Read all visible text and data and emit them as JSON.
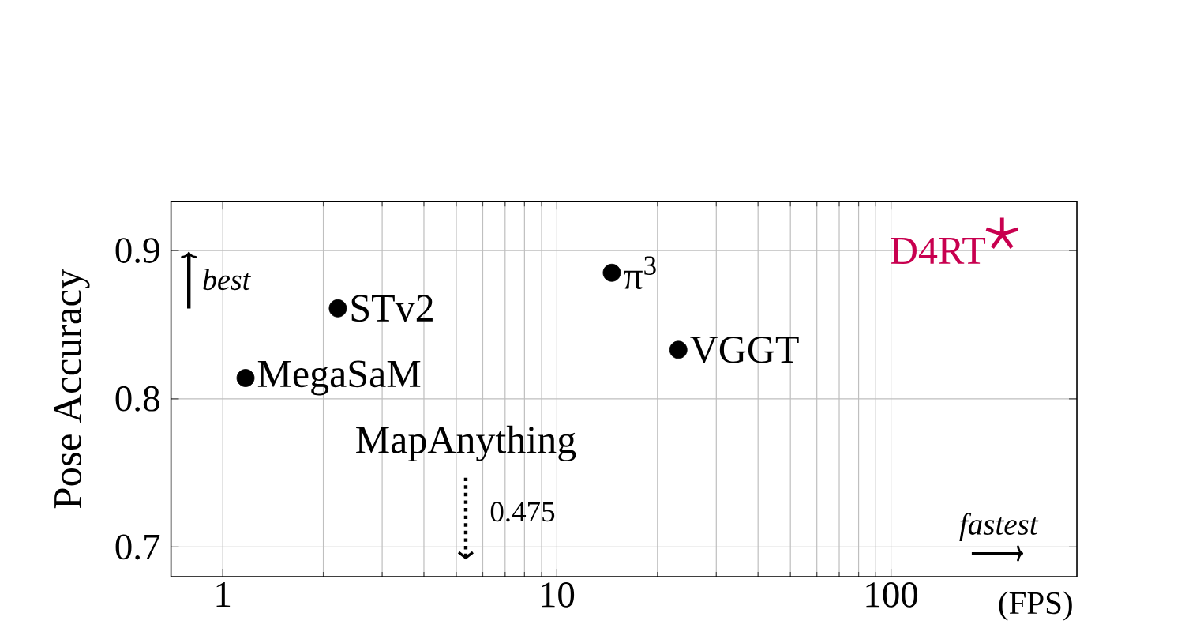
{
  "chart_data": {
    "type": "scatter",
    "ylabel": "Pose Accuracy",
    "xlabel": "(FPS)",
    "log": "x",
    "grid": true,
    "marker": "circle",
    "xlim": [
      0.7,
      360
    ],
    "ylim": [
      0.68,
      0.933
    ],
    "xticks": [
      1,
      10,
      100
    ],
    "yticks": [
      0.7,
      0.8,
      0.9
    ],
    "annotations": [
      "best",
      "fastest",
      "MapAnything",
      "0.475"
    ],
    "series": [
      {
        "name": "MegaSaM",
        "x": [
          1.17
        ],
        "values": [
          0.814
        ],
        "color": "#000000"
      },
      {
        "name": "STv2",
        "x": [
          2.21
        ],
        "values": [
          0.861
        ],
        "color": "#000000"
      },
      {
        "name": "π$^{3}$",
        "x": [
          14.6
        ],
        "values": [
          0.885
        ],
        "color": "#000000"
      },
      {
        "name": "VGGT",
        "x": [
          23.1
        ],
        "values": [
          0.833
        ],
        "color": "#000000"
      },
      {
        "name": "D4RT",
        "x": [
          215
        ],
        "values": [
          0.911
        ],
        "color": "#c8004f",
        "marker": "cross"
      }
    ]
  }
}
